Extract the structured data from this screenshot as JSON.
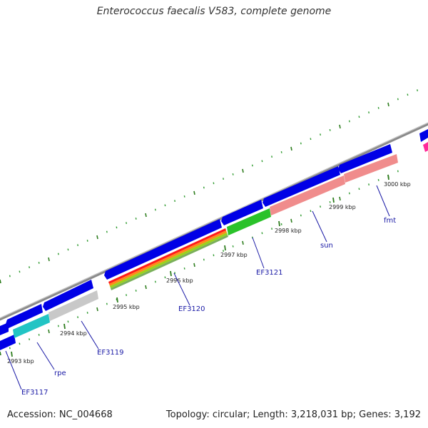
{
  "title": "Enterococcus faecalis V583, complete genome",
  "accession": "Accession: NC_004668",
  "summary": "Topology: circular; Length: 3,218,031 bp; Genes: 3,192",
  "colors": {
    "backbone": "#8a8a8a",
    "cds": "#0000e6",
    "tick_major": "#2e7d1e",
    "tick_minor": "#2e9a2e",
    "label": "#1a1aa6"
  },
  "ticks": [
    "2993 kbp",
    "2994 kbp",
    "2995 kbp",
    "2996 kbp",
    "2997 kbp",
    "2998 kbp",
    "2999 kbp",
    "3000 kbp"
  ],
  "genes": [
    "EF3117",
    "rpe",
    "EF3119",
    "EF3120",
    "EF3121",
    "sun",
    "fmt"
  ]
}
